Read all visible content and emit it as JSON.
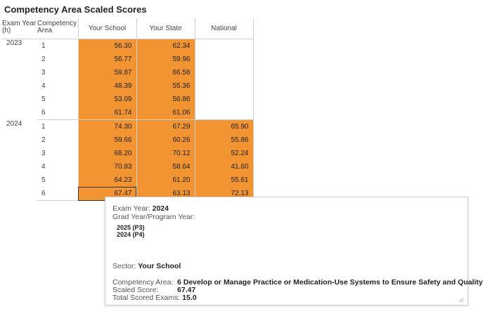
{
  "title": "Competency Area Scaled Scores",
  "headers": {
    "exam_year_1": "Exam Year",
    "exam_year_2": "(h)",
    "comp_area_1": "Competency",
    "comp_area_2": "Area",
    "your_school": "Your School",
    "your_state": "Your State",
    "national": "National"
  },
  "groups": [
    {
      "year": "2023",
      "rows": [
        {
          "area": "1",
          "school": "56.30",
          "state": "62.34",
          "national": ""
        },
        {
          "area": "2",
          "school": "56.77",
          "state": "59.96",
          "national": ""
        },
        {
          "area": "3",
          "school": "59.87",
          "state": "66.58",
          "national": ""
        },
        {
          "area": "4",
          "school": "48.39",
          "state": "55.36",
          "national": ""
        },
        {
          "area": "5",
          "school": "53.09",
          "state": "56.86",
          "national": ""
        },
        {
          "area": "6",
          "school": "61.74",
          "state": "61.06",
          "national": ""
        }
      ]
    },
    {
      "year": "2024",
      "rows": [
        {
          "area": "1",
          "school": "74.30",
          "state": "67.29",
          "national": "65.90"
        },
        {
          "area": "2",
          "school": "59.66",
          "state": "60.26",
          "national": "55.86"
        },
        {
          "area": "3",
          "school": "68.20",
          "state": "70.12",
          "national": "52.24"
        },
        {
          "area": "4",
          "school": "70.83",
          "state": "58.64",
          "national": "41.60"
        },
        {
          "area": "5",
          "school": "64.23",
          "state": "61.20",
          "national": "55.61"
        },
        {
          "area": "6",
          "school": "67.47",
          "state": "63.13",
          "national": "72.13"
        }
      ]
    }
  ],
  "tooltip": {
    "exam_year_label": "Exam Year:",
    "exam_year_value": "2024",
    "grad_year_label": "Grad Year/Program Year:",
    "grad_years": [
      "2025 (P3)",
      "2024 (P4)"
    ],
    "sector_label": "Sector:",
    "sector_value": "Your School",
    "comp_area_label": "Competency Area:",
    "comp_area_value": "6 Develop or Manage Practice or Medication-Use Systems to Ensure Safety and Quality",
    "scaled_score_label": "Scaled Score:",
    "scaled_score_value": "67.47",
    "total_exams_label": "Total Scored Exams:",
    "total_exams_value": "15.0"
  },
  "colors": {
    "fill": "#f39433"
  }
}
